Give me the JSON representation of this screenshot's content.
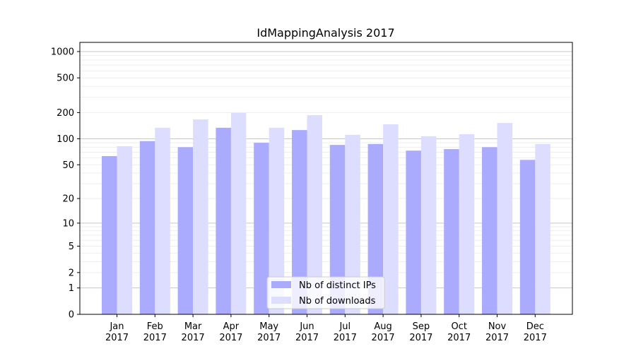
{
  "chart_data": {
    "type": "bar",
    "title": "IdMappingAnalysis 2017",
    "xlabel": "",
    "ylabel": "",
    "yscale": "symlog (log10(1+y))",
    "ylim": [
      0,
      1300
    ],
    "yticks": [
      0,
      1,
      2,
      5,
      10,
      20,
      50,
      100,
      200,
      500,
      1000
    ],
    "grid": true,
    "legend_position": "bottom-center",
    "categories": [
      "Jan\n2017",
      "Feb\n2017",
      "Mar\n2017",
      "Apr\n2017",
      "May\n2017",
      "Jun\n2017",
      "Jul\n2017",
      "Aug\n2017",
      "Sep\n2017",
      "Oct\n2017",
      "Nov\n2017",
      "Dec\n2017"
    ],
    "series": [
      {
        "name": "Nb of distinct IPs",
        "color": "#aaaaff",
        "values": [
          63,
          94,
          80,
          134,
          90,
          126,
          85,
          87,
          73,
          76,
          80,
          57
        ]
      },
      {
        "name": "Nb of downloads",
        "color": "#ddddff",
        "values": [
          82,
          134,
          167,
          198,
          134,
          187,
          111,
          147,
          107,
          113,
          152,
          87
        ]
      }
    ]
  }
}
